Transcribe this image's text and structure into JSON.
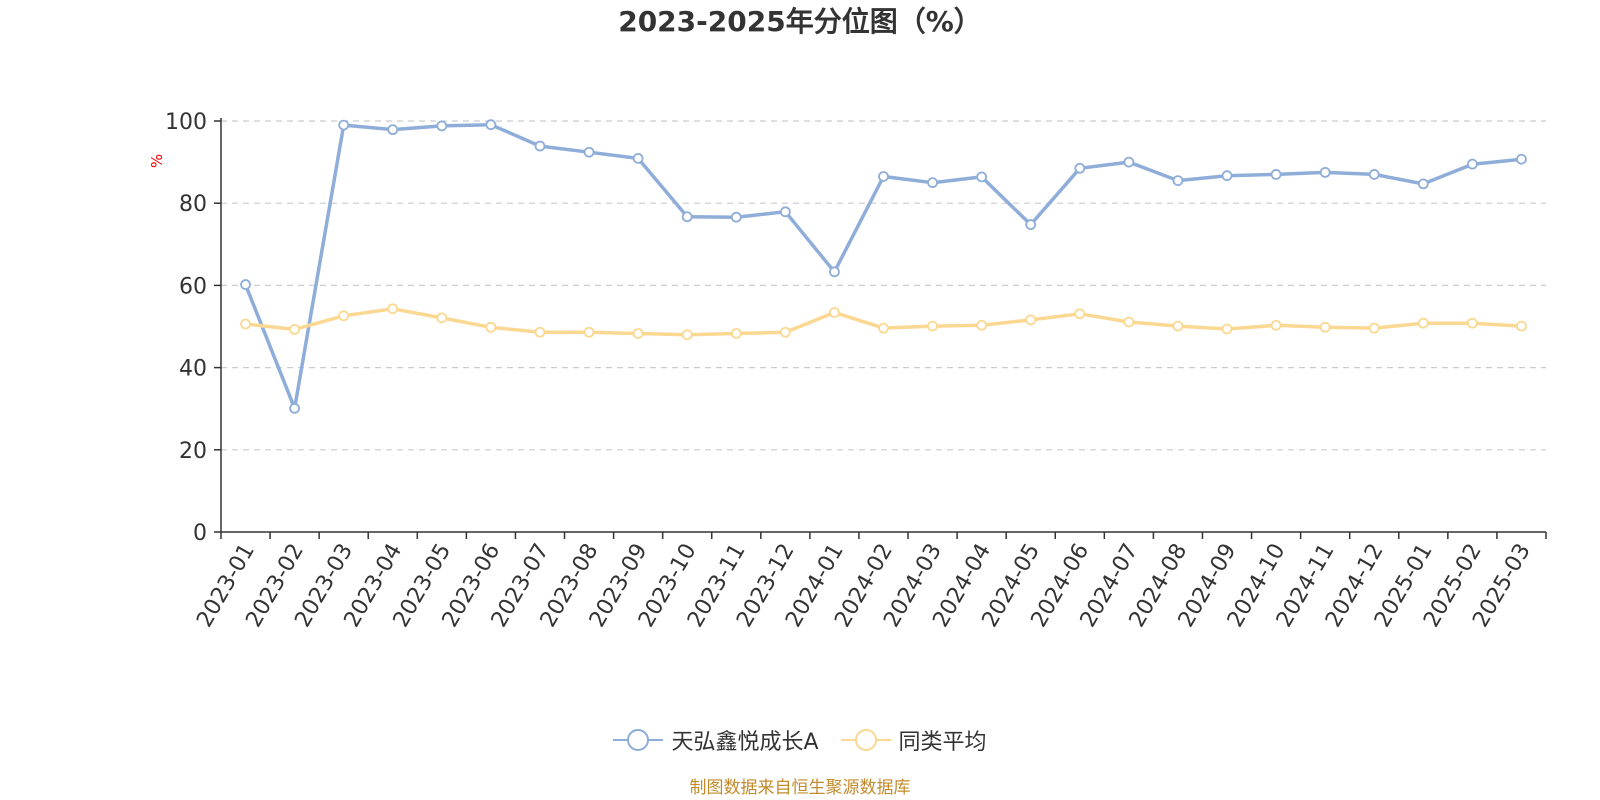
{
  "title": "2023-2025年分位图（%）",
  "source": "制图数据来自恒生聚源数据库",
  "colors": {
    "series_a": "#8eadd8",
    "series_b": "#fbd892",
    "unit": "#ff0000",
    "axis": "#333333",
    "grid": "#cccccc",
    "source": "#c28b2c"
  },
  "chart_data": {
    "type": "line",
    "title": "2023-2025年分位图（%）",
    "ylabel": "%",
    "xlabel": "",
    "ylim": [
      0,
      100
    ],
    "yticks": [
      0,
      20,
      40,
      60,
      80,
      100
    ],
    "grid": true,
    "legend_position": "bottom-center",
    "categories": [
      "2023-01",
      "2023-02",
      "2023-03",
      "2023-04",
      "2023-05",
      "2023-06",
      "2023-07",
      "2023-08",
      "2023-09",
      "2023-10",
      "2023-11",
      "2023-12",
      "2024-01",
      "2024-02",
      "2024-03",
      "2024-04",
      "2024-05",
      "2024-06",
      "2024-07",
      "2024-08",
      "2024-09",
      "2024-10",
      "2024-11",
      "2024-12",
      "2025-01",
      "2025-02",
      "2025-03"
    ],
    "series": [
      {
        "name": "天弘鑫悦成长A",
        "color": "#8eadd8",
        "values": [
          60.2,
          30.1,
          99.0,
          97.9,
          98.8,
          99.1,
          93.9,
          92.4,
          90.9,
          76.7,
          76.6,
          77.9,
          63.3,
          86.5,
          85.0,
          86.4,
          74.8,
          88.5,
          90.0,
          85.5,
          86.7,
          87.0,
          87.5,
          87.0,
          84.7,
          89.5,
          90.7
        ]
      },
      {
        "name": "同类平均",
        "color": "#fbd892",
        "values": [
          50.6,
          49.3,
          52.6,
          54.3,
          52.1,
          49.8,
          48.6,
          48.6,
          48.3,
          48.0,
          48.3,
          48.6,
          53.4,
          49.6,
          50.1,
          50.3,
          51.6,
          53.1,
          51.1,
          50.1,
          49.4,
          50.3,
          49.8,
          49.6,
          50.8,
          50.8,
          50.1
        ]
      }
    ]
  }
}
